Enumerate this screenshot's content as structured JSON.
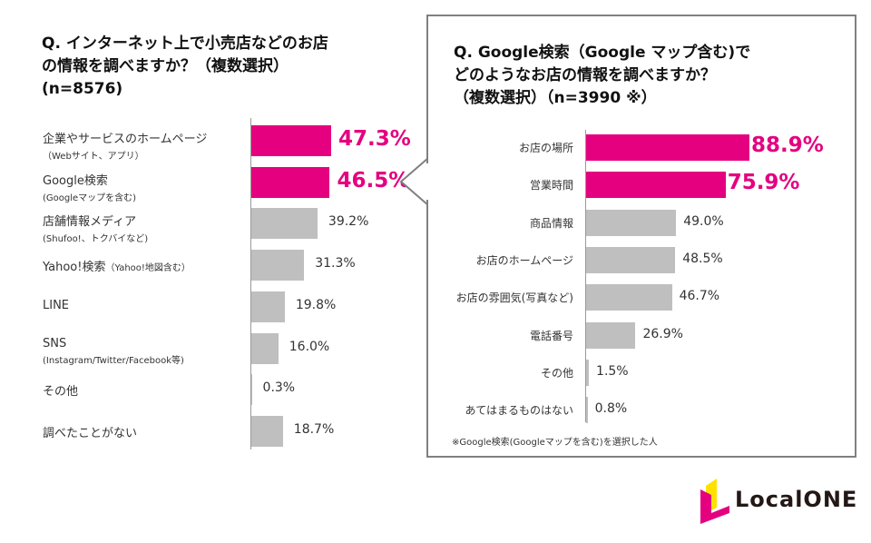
{
  "colors": {
    "highlight": "#e4007f",
    "bar": "#bfbfbf",
    "box_border": "#808080"
  },
  "chart_data": [
    {
      "type": "bar",
      "orientation": "horizontal",
      "title": "Q. インターネット上で小売店などのお店\nの情報を調べますか？（複数選択）\n(n=8576)",
      "categories": [
        {
          "label": "企業やサービスのホームページ",
          "sub": "（Webサイト、アプリ）"
        },
        {
          "label": "Google検索",
          "sub": "(Googleマップを含む)"
        },
        {
          "label": "店舗情報メディア",
          "sub": "(Shufoo!、トクバイなど)"
        },
        {
          "label": "Yahoo!検索",
          "inline": "（Yahoo!地図含む）"
        },
        {
          "label": "LINE"
        },
        {
          "label": "SNS",
          "sub": "(Instagram/Twitter/Facebook等)"
        },
        {
          "label": "その他"
        },
        {
          "label": "調べたことがない"
        }
      ],
      "values": [
        47.3,
        46.5,
        39.2,
        31.3,
        19.8,
        16.0,
        0.3,
        18.7
      ],
      "value_labels": [
        "47.3%",
        "46.5%",
        "39.2%",
        "31.3%",
        "19.8%",
        "16.0%",
        "0.3%",
        "18.7%"
      ],
      "highlighted": [
        true,
        true,
        false,
        false,
        false,
        false,
        false,
        false
      ]
    },
    {
      "type": "bar",
      "orientation": "horizontal",
      "title": "Q. Google検索（Google マップ含む)で\nどのようなお店の情報を調べますか？\n（複数選択）（n=3990 ※）",
      "categories": [
        "お店の場所",
        "営業時間",
        "商品情報",
        "お店のホームページ",
        "お店の雰囲気(写真など)",
        "電話番号",
        "その他",
        "あてはまるものはない"
      ],
      "values": [
        88.9,
        75.9,
        49.0,
        48.5,
        46.7,
        26.9,
        1.5,
        0.8
      ],
      "value_labels": [
        "88.9%",
        "75.9%",
        "49.0%",
        "48.5%",
        "46.7%",
        "26.9%",
        "1.5%",
        "0.8%"
      ],
      "highlighted": [
        true,
        true,
        false,
        false,
        false,
        false,
        false,
        false
      ],
      "footnote": "※Google検索(Googleマップを含む)を選択した人"
    }
  ],
  "logo": {
    "text": "LocalONE"
  }
}
